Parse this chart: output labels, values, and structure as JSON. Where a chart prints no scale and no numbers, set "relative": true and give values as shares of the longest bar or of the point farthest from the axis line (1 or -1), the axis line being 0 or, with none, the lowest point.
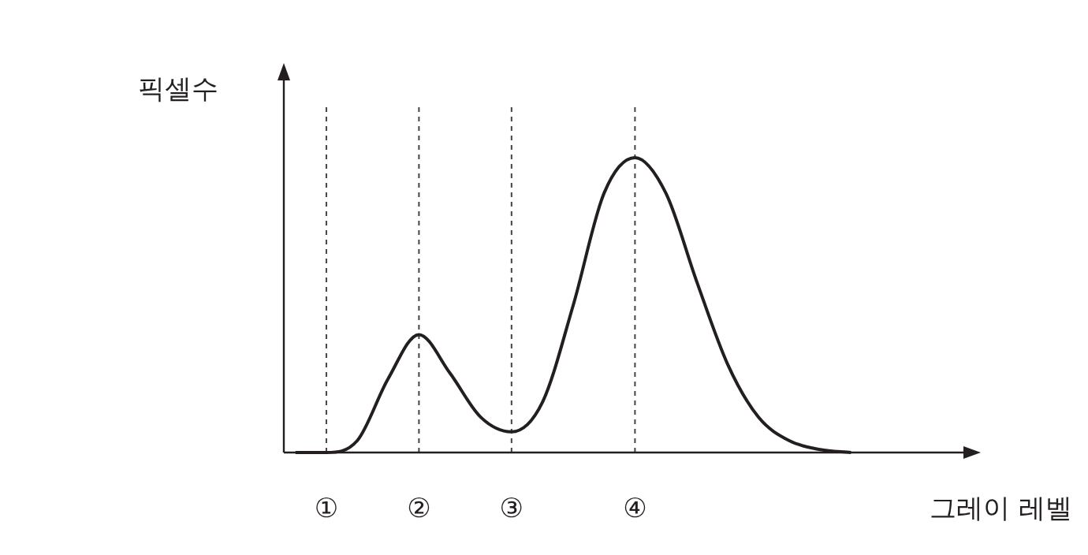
{
  "chart_data": {
    "type": "line",
    "relative": true,
    "xlabel": "그레이 레벨",
    "ylabel": "픽셀수",
    "categories": [
      null,
      "①",
      null,
      null,
      "②",
      null,
      null,
      "③",
      null,
      null,
      null,
      "④",
      null,
      null,
      null,
      null,
      null,
      null,
      null,
      null,
      null,
      null,
      null
    ],
    "values": [
      0,
      0,
      0.04,
      0.25,
      0.4,
      0.27,
      0.12,
      0.07,
      0.17,
      0.5,
      0.88,
      1,
      0.88,
      0.58,
      0.3,
      0.12,
      0.04,
      0.01,
      0,
      null,
      null,
      null,
      null
    ],
    "color": "#231f20",
    "marker": "none",
    "line_style": "solid",
    "ref_lines": [
      {
        "axis": "x",
        "value": "①",
        "line_style": "dashed",
        "color": "#444444"
      },
      {
        "axis": "x",
        "value": "②",
        "line_style": "dashed",
        "color": "#444444"
      },
      {
        "axis": "x",
        "value": "③",
        "line_style": "dashed",
        "color": "#444444"
      },
      {
        "axis": "x",
        "value": "④",
        "line_style": "dashed",
        "color": "#444444"
      }
    ]
  }
}
